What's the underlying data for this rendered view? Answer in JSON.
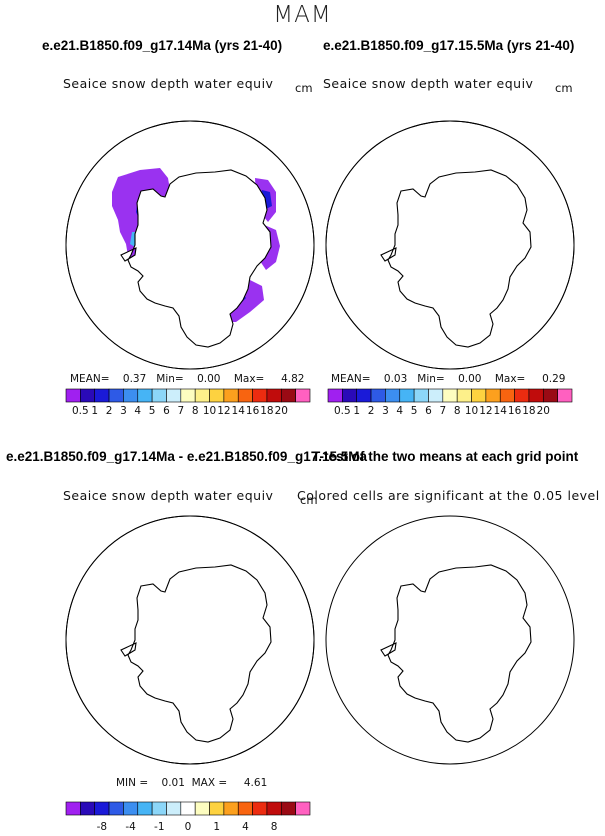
{
  "season": "MAM",
  "panels": {
    "top_left": {
      "title": "e.e21.B1850.f09_g17.14Ma (yrs 21-40)",
      "subtitle": "Seaice snow depth water equiv",
      "unit": "cm",
      "stats": {
        "mean_label": "MEAN=",
        "mean": "0.37",
        "min_label": "Min=",
        "min": "0.00",
        "max_label": "Max=",
        "max": "4.82"
      }
    },
    "top_right": {
      "title": "e.e21.B1850.f09_g17.15.5Ma (yrs 21-40)",
      "subtitle": "Seaice snow depth water equiv",
      "unit": "cm",
      "stats": {
        "mean_label": "MEAN=",
        "mean": "0.03",
        "min_label": "Min=",
        "min": "0.00",
        "max_label": "Max=",
        "max": "0.29"
      }
    },
    "bottom_left": {
      "title": "e.e21.B1850.f09_g17.14Ma - e.e21.B1850.f09_g17.15.5Ma",
      "subtitle": "Seaice snow depth water equiv",
      "unit": "cm",
      "stats": {
        "min_label": "MIN =",
        "min": "0.01",
        "max_label": "MAX =",
        "max": "4.61"
      }
    },
    "bottom_right": {
      "title": "T-test of the two means at each grid point",
      "subtitle": "Colored cells are significant at the 0.05 level"
    }
  },
  "colorbar_top": {
    "labels": [
      "0.5",
      "1",
      "2",
      "3",
      "4",
      "5",
      "6",
      "7",
      "8",
      "10",
      "12",
      "14",
      "16",
      "18",
      "20"
    ],
    "colors": [
      "#a020f0",
      "#2a0ab8",
      "#1a1ad8",
      "#2e5ae6",
      "#3c8ef0",
      "#46b4f5",
      "#8cd6f8",
      "#cceefb",
      "#fdfdc0",
      "#fdf08a",
      "#fdd240",
      "#fca01e",
      "#f86410",
      "#ec2c10",
      "#c00c0c",
      "#9a0a14",
      "#ff60c0"
    ]
  },
  "colorbar_bottom": {
    "labels": [
      "-8",
      "-4",
      "-1",
      "0",
      "1",
      "4",
      "8"
    ],
    "colors": [
      "#a020f0",
      "#2a0ab8",
      "#1a1ad8",
      "#2e5ae6",
      "#3c8ef0",
      "#46b4f5",
      "#8cd6f8",
      "#cceefb",
      "#ffffff",
      "#fdfdc0",
      "#fdd240",
      "#fca01e",
      "#f86410",
      "#ec2c10",
      "#c00c0c",
      "#9a0a14",
      "#ff60c0"
    ]
  },
  "chart_data": [
    {
      "type": "heatmap",
      "title": "e.e21.B1850.f09_g17.14Ma (yrs 21-40)",
      "subtitle": "Seaice snow depth water equiv",
      "units": "cm",
      "projection": "south polar stereographic",
      "mean": 0.37,
      "min": 0.0,
      "max": 4.82,
      "levels": [
        0.5,
        1,
        2,
        3,
        4,
        5,
        6,
        7,
        8,
        10,
        12,
        14,
        16,
        18,
        20
      ]
    },
    {
      "type": "heatmap",
      "title": "e.e21.B1850.f09_g17.15.5Ma (yrs 21-40)",
      "subtitle": "Seaice snow depth water equiv",
      "units": "cm",
      "projection": "south polar stereographic",
      "mean": 0.03,
      "min": 0.0,
      "max": 0.29,
      "levels": [
        0.5,
        1,
        2,
        3,
        4,
        5,
        6,
        7,
        8,
        10,
        12,
        14,
        16,
        18,
        20
      ]
    },
    {
      "type": "heatmap",
      "title": "e.e21.B1850.f09_g17.14Ma - e.e21.B1850.f09_g17.15.5Ma",
      "subtitle": "Seaice snow depth water equiv",
      "units": "cm",
      "projection": "south polar stereographic",
      "min": 0.01,
      "max": 4.61,
      "levels": [
        -8,
        -4,
        -1,
        0,
        1,
        4,
        8
      ]
    },
    {
      "type": "heatmap",
      "title": "T-test of the two means at each grid point",
      "subtitle": "Colored cells are significant at the 0.05 level",
      "projection": "south polar stereographic"
    }
  ]
}
